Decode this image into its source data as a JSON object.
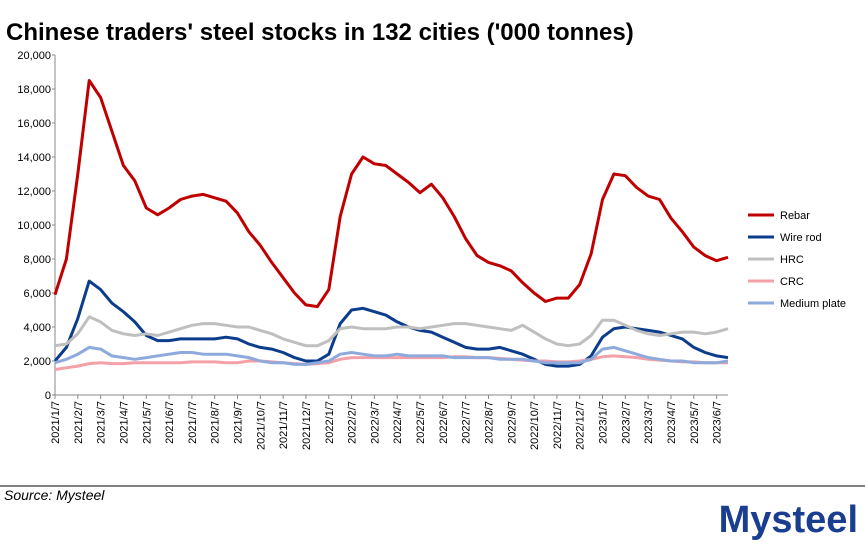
{
  "chart_data": {
    "type": "line",
    "title": "Chinese traders' steel stocks in 132 cities ('000 tonnes)",
    "categories": [
      "2021/1/7",
      null,
      "2021/2/7",
      null,
      "2021/3/7",
      null,
      "2021/4/7",
      null,
      "2021/5/7",
      null,
      "2021/6/7",
      null,
      "2021/7/7",
      null,
      "2021/8/7",
      null,
      "2021/9/7",
      null,
      "2021/10/7",
      null,
      "2021/11/7",
      null,
      "2021/12/7",
      null,
      "2022/1/7",
      null,
      "2022/2/7",
      null,
      "2022/3/7",
      null,
      "2022/4/7",
      null,
      "2022/5/7",
      null,
      "2022/6/7",
      null,
      "2022/7/7",
      null,
      "2022/8/7",
      null,
      "2022/9/7",
      null,
      "2022/10/7",
      null,
      "2022/11/7",
      null,
      "2022/12/7",
      null,
      "2023/1/7",
      null,
      "2023/2/7",
      null,
      "2023/3/7",
      null,
      "2023/4/7",
      null,
      "2023/5/7",
      null,
      "2023/6/7",
      null
    ],
    "series": [
      {
        "name": "Rebar",
        "color": "#c00000",
        "width": 3,
        "values": [
          5900,
          8000,
          13000,
          18500,
          17500,
          15500,
          13500,
          12600,
          11000,
          10600,
          11000,
          11500,
          11700,
          11800,
          11600,
          11400,
          10700,
          9600,
          8800,
          7800,
          6900,
          6000,
          5300,
          5200,
          6200,
          10500,
          13000,
          14000,
          13600,
          13500,
          13000,
          12500,
          11900,
          12400,
          11600,
          10500,
          9200,
          8200,
          7800,
          7600,
          7300,
          6600,
          6000,
          5500,
          5700,
          5700,
          6500,
          8300,
          11500,
          13000,
          12900,
          12200,
          11700,
          11500,
          10400,
          9600,
          8700,
          8200,
          7900,
          8100
        ]
      },
      {
        "name": "Wire rod",
        "color": "#0b3d8c",
        "width": 3,
        "values": [
          2000,
          2800,
          4500,
          6700,
          6200,
          5400,
          4900,
          4300,
          3500,
          3200,
          3200,
          3300,
          3300,
          3300,
          3300,
          3400,
          3300,
          3000,
          2800,
          2700,
          2500,
          2200,
          2000,
          2000,
          2400,
          4200,
          5000,
          5100,
          4900,
          4700,
          4300,
          4000,
          3800,
          3700,
          3400,
          3100,
          2800,
          2700,
          2700,
          2800,
          2600,
          2400,
          2100,
          1800,
          1700,
          1700,
          1800,
          2300,
          3400,
          3900,
          4000,
          3900,
          3800,
          3700,
          3500,
          3300,
          2800,
          2500,
          2300,
          2200
        ]
      },
      {
        "name": "HRC",
        "color": "#bfbfbf",
        "width": 3,
        "values": [
          2900,
          3000,
          3600,
          4600,
          4300,
          3800,
          3600,
          3500,
          3600,
          3500,
          3700,
          3900,
          4100,
          4200,
          4200,
          4100,
          4000,
          4000,
          3800,
          3600,
          3300,
          3100,
          2900,
          2900,
          3200,
          3900,
          4000,
          3900,
          3900,
          3900,
          4000,
          4000,
          3900,
          4000,
          4100,
          4200,
          4200,
          4100,
          4000,
          3900,
          3800,
          4100,
          3700,
          3300,
          3000,
          2900,
          3000,
          3500,
          4400,
          4400,
          4100,
          3800,
          3600,
          3500,
          3600,
          3700,
          3700,
          3600,
          3700,
          3900
        ]
      },
      {
        "name": "CRC",
        "color": "#f4a0a8",
        "width": 3,
        "values": [
          1500,
          1600,
          1700,
          1850,
          1900,
          1850,
          1850,
          1900,
          1900,
          1900,
          1900,
          1900,
          1950,
          1950,
          1950,
          1900,
          1900,
          2000,
          2000,
          1950,
          1900,
          1850,
          1800,
          1850,
          1900,
          2100,
          2200,
          2200,
          2200,
          2200,
          2200,
          2200,
          2200,
          2200,
          2200,
          2250,
          2250,
          2200,
          2200,
          2150,
          2100,
          2050,
          2000,
          2000,
          1950,
          1950,
          2000,
          2100,
          2250,
          2300,
          2250,
          2200,
          2100,
          2050,
          2000,
          1950,
          1950,
          1900,
          1900,
          1900
        ]
      },
      {
        "name": "Medium plate",
        "color": "#8ea9db",
        "width": 3,
        "values": [
          1900,
          2100,
          2400,
          2800,
          2700,
          2300,
          2200,
          2100,
          2200,
          2300,
          2400,
          2500,
          2500,
          2400,
          2400,
          2400,
          2300,
          2200,
          2000,
          1900,
          1900,
          1800,
          1800,
          1900,
          2000,
          2400,
          2500,
          2400,
          2300,
          2300,
          2400,
          2300,
          2300,
          2300,
          2300,
          2200,
          2200,
          2200,
          2200,
          2100,
          2100,
          2100,
          2000,
          1900,
          1900,
          1900,
          1900,
          2100,
          2700,
          2800,
          2600,
          2400,
          2200,
          2100,
          2000,
          2000,
          1900,
          1900,
          1900,
          2000
        ]
      }
    ],
    "ylim": [
      0,
      20000
    ],
    "yticks": [
      0,
      {
        "value": 2000,
        "label": "2,000"
      },
      {
        "value": 4000,
        "label": "4,000"
      },
      {
        "value": 6000,
        "label": "6,000"
      },
      {
        "value": 8000,
        "label": "8,000"
      },
      {
        "value": 10000,
        "label": "10,000"
      },
      {
        "value": 12000,
        "label": "12,000"
      },
      {
        "value": 14000,
        "label": "14,000"
      },
      {
        "value": 16000,
        "label": "16,000"
      },
      {
        "value": 18000,
        "label": "18,000"
      },
      {
        "value": 20000,
        "label": "20,000"
      }
    ],
    "grid": false,
    "legend": "right",
    "source": "Source: Mysteel",
    "logo": "Mysteel"
  }
}
